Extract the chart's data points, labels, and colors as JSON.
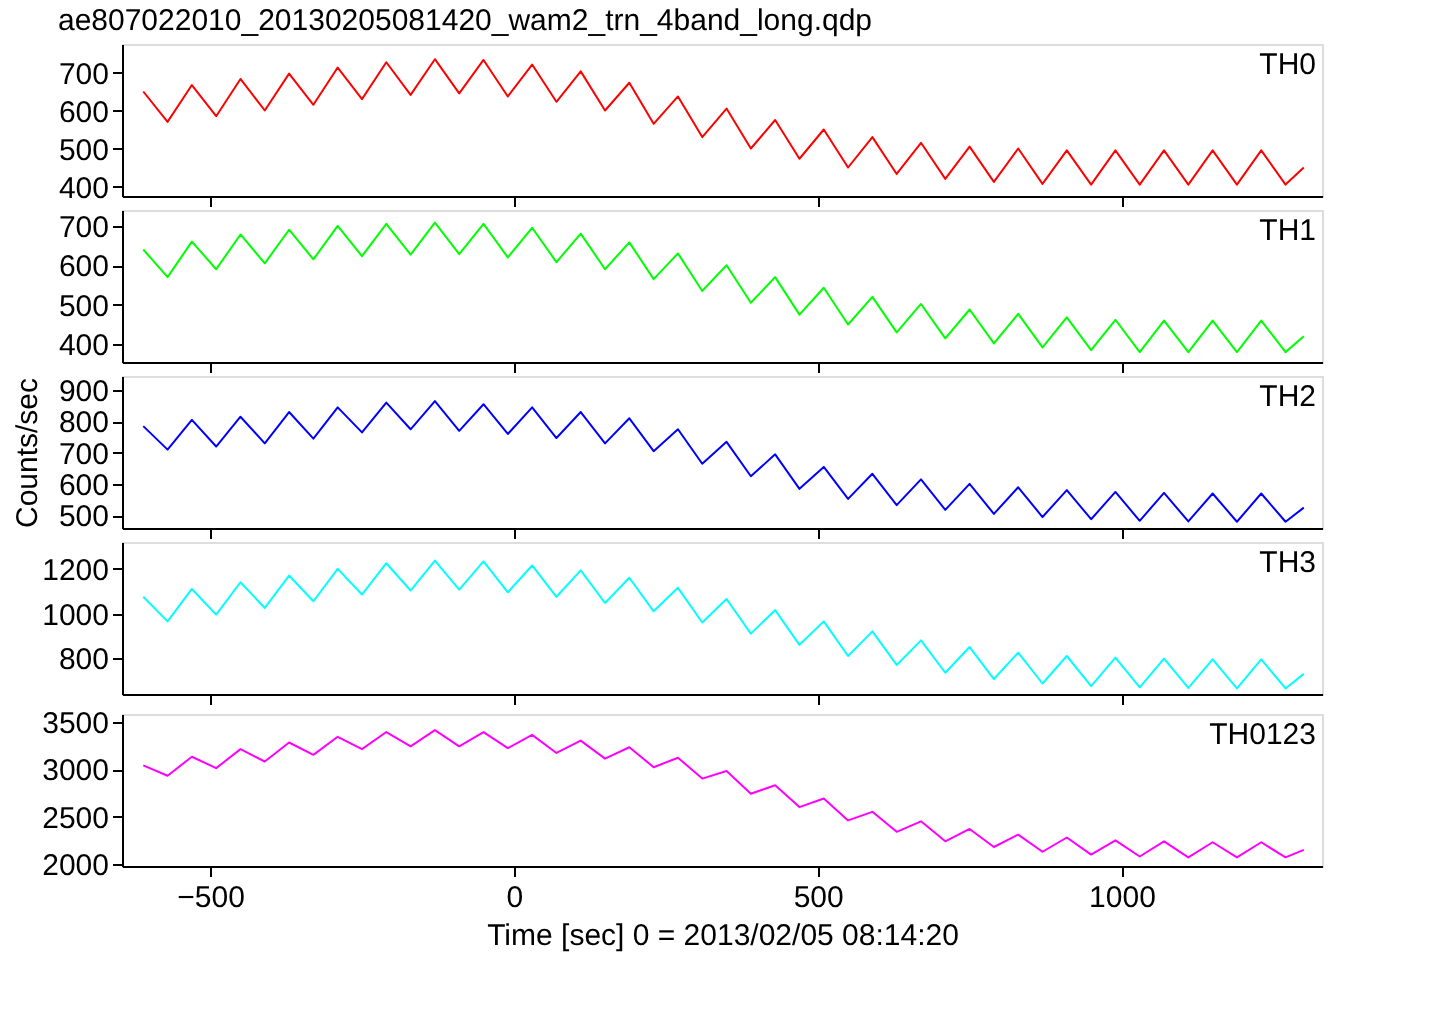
{
  "chart_data": [
    {
      "type": "line",
      "title": "ae807022010_20130205081420_wam2_trn_4band_long.qdp",
      "tick_labels": "y",
      "grid": false,
      "xlim": [
        -645,
        1330
      ],
      "xticks": [
        -500,
        0,
        500,
        1000
      ],
      "ylim": [
        375,
        775
      ],
      "yticks": [
        400,
        500,
        600,
        700
      ],
      "x": [
        -610,
        -570,
        -530,
        -490,
        -450,
        -410,
        -370,
        -330,
        -290,
        -250,
        -210,
        -170,
        -130,
        -90,
        -50,
        -10,
        30,
        70,
        110,
        150,
        190,
        230,
        270,
        310,
        350,
        390,
        430,
        470,
        510,
        550,
        590,
        630,
        670,
        710,
        750,
        790,
        830,
        870,
        910,
        950,
        990,
        1030,
        1070,
        1110,
        1150,
        1190,
        1230,
        1270,
        1300
      ],
      "series": [
        {
          "name": "TH0",
          "color": "#ff0000",
          "values": [
            650,
            570,
            667,
            585,
            683,
            600,
            697,
            615,
            713,
            630,
            727,
            641,
            735,
            645,
            733,
            637,
            721,
            623,
            703,
            600,
            673,
            565,
            637,
            530,
            605,
            500,
            575,
            473,
            550,
            450,
            530,
            433,
            515,
            420,
            505,
            412,
            500,
            407,
            495,
            405,
            495,
            405,
            495,
            405,
            495,
            405,
            495,
            405,
            450
          ]
        }
      ]
    },
    {
      "type": "line",
      "tick_labels": "y",
      "grid": false,
      "xlim": [
        -645,
        1330
      ],
      "xticks": [
        -500,
        0,
        500,
        1000
      ],
      "ylim": [
        355,
        740
      ],
      "yticks": [
        400,
        500,
        600,
        700
      ],
      "x": [
        -610,
        -570,
        -530,
        -490,
        -450,
        -410,
        -370,
        -330,
        -290,
        -250,
        -210,
        -170,
        -130,
        -90,
        -50,
        -10,
        30,
        70,
        110,
        150,
        190,
        230,
        270,
        310,
        350,
        390,
        430,
        470,
        510,
        550,
        590,
        630,
        670,
        710,
        750,
        790,
        830,
        870,
        910,
        950,
        990,
        1030,
        1070,
        1110,
        1150,
        1190,
        1230,
        1270,
        1300
      ],
      "series": [
        {
          "name": "TH1",
          "color": "#00ff00",
          "values": [
            640,
            570,
            660,
            590,
            678,
            605,
            690,
            615,
            700,
            623,
            705,
            627,
            708,
            628,
            705,
            620,
            695,
            608,
            680,
            590,
            658,
            565,
            630,
            535,
            600,
            505,
            570,
            475,
            543,
            450,
            520,
            430,
            502,
            415,
            488,
            402,
            477,
            392,
            468,
            385,
            462,
            380,
            460,
            380,
            460,
            380,
            460,
            380,
            420
          ]
        }
      ]
    },
    {
      "type": "line",
      "ylabel": "Counts/sec",
      "tick_labels": "y",
      "grid": false,
      "xlim": [
        -645,
        1330
      ],
      "xticks": [
        -500,
        0,
        500,
        1000
      ],
      "ylim": [
        460,
        945
      ],
      "yticks": [
        500,
        600,
        700,
        800,
        900
      ],
      "x": [
        -610,
        -570,
        -530,
        -490,
        -450,
        -410,
        -370,
        -330,
        -290,
        -250,
        -210,
        -170,
        -130,
        -90,
        -50,
        -10,
        30,
        70,
        110,
        150,
        190,
        230,
        270,
        310,
        350,
        390,
        430,
        470,
        510,
        550,
        590,
        630,
        670,
        710,
        750,
        790,
        830,
        870,
        910,
        950,
        990,
        1030,
        1070,
        1110,
        1150,
        1190,
        1230,
        1270,
        1300
      ],
      "series": [
        {
          "name": "TH2",
          "color": "#0000ff",
          "values": [
            785,
            710,
            805,
            720,
            815,
            730,
            830,
            745,
            845,
            765,
            860,
            775,
            865,
            770,
            855,
            760,
            845,
            747,
            830,
            730,
            810,
            705,
            775,
            665,
            735,
            625,
            695,
            585,
            655,
            553,
            633,
            533,
            615,
            518,
            601,
            505,
            590,
            495,
            581,
            488,
            575,
            483,
            572,
            481,
            570,
            480,
            570,
            480,
            525
          ]
        }
      ]
    },
    {
      "type": "line",
      "tick_labels": "y",
      "grid": false,
      "xlim": [
        -645,
        1330
      ],
      "xticks": [
        -500,
        0,
        500,
        1000
      ],
      "ylim": [
        640,
        1320
      ],
      "yticks": [
        800,
        1000,
        1200
      ],
      "x": [
        -610,
        -570,
        -530,
        -490,
        -450,
        -410,
        -370,
        -330,
        -290,
        -250,
        -210,
        -170,
        -130,
        -90,
        -50,
        -10,
        30,
        70,
        110,
        150,
        190,
        230,
        270,
        310,
        350,
        390,
        430,
        470,
        510,
        550,
        590,
        630,
        670,
        710,
        750,
        790,
        830,
        870,
        910,
        950,
        990,
        1030,
        1070,
        1110,
        1150,
        1190,
        1230,
        1270,
        1300
      ],
      "series": [
        {
          "name": "TH3",
          "color": "#00ffff",
          "values": [
            1075,
            965,
            1110,
            995,
            1140,
            1025,
            1170,
            1055,
            1200,
            1085,
            1225,
            1103,
            1237,
            1107,
            1233,
            1095,
            1215,
            1075,
            1193,
            1047,
            1160,
            1010,
            1115,
            960,
            1065,
            910,
            1015,
            860,
            965,
            810,
            920,
            770,
            880,
            735,
            850,
            707,
            825,
            687,
            810,
            675,
            803,
            670,
            798,
            667,
            795,
            665,
            795,
            665,
            730
          ]
        }
      ]
    },
    {
      "type": "line",
      "xlabel": "Time [sec] 0 = 2013/02/05 08:14:20",
      "grid": false,
      "xlim": [
        -645,
        1330
      ],
      "xticks": [
        -500,
        0,
        500,
        1000
      ],
      "ylim": [
        1980,
        3580
      ],
      "yticks": [
        2000,
        2500,
        3000,
        3500
      ],
      "x": [
        -610,
        -570,
        -530,
        -490,
        -450,
        -410,
        -370,
        -330,
        -290,
        -250,
        -210,
        -170,
        -130,
        -90,
        -50,
        -10,
        30,
        70,
        110,
        150,
        190,
        230,
        270,
        310,
        350,
        390,
        430,
        470,
        510,
        550,
        590,
        630,
        670,
        710,
        750,
        790,
        830,
        870,
        910,
        950,
        990,
        1030,
        1070,
        1110,
        1150,
        1190,
        1230,
        1270,
        1300
      ],
      "series": [
        {
          "name": "TH0123",
          "color": "#ff00ff",
          "values": [
            3040,
            2930,
            3130,
            3010,
            3210,
            3080,
            3280,
            3150,
            3340,
            3210,
            3390,
            3240,
            3410,
            3240,
            3390,
            3220,
            3360,
            3170,
            3300,
            3110,
            3230,
            3020,
            3120,
            2900,
            2980,
            2740,
            2830,
            2600,
            2690,
            2460,
            2550,
            2340,
            2450,
            2240,
            2370,
            2180,
            2310,
            2130,
            2280,
            2100,
            2250,
            2080,
            2240,
            2070,
            2230,
            2070,
            2230,
            2070,
            2150
          ]
        }
      ]
    }
  ]
}
